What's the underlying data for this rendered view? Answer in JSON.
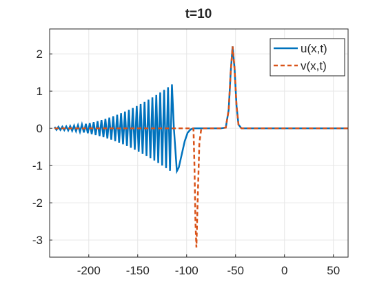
{
  "chart_data": {
    "type": "line",
    "title": "t=10",
    "x": [
      -235,
      -233,
      -231,
      -229,
      -227,
      -225,
      -223,
      -221,
      -219,
      -217,
      -215,
      -213,
      -211,
      -209,
      -207,
      -205,
      -203,
      -201,
      -199,
      -197,
      -195,
      -193,
      -191,
      -189,
      -187,
      -185,
      -183,
      -181,
      -179,
      -177,
      -175,
      -173,
      -171,
      -169,
      -167,
      -165,
      -163,
      -161,
      -159,
      -157,
      -155,
      -153,
      -151,
      -149,
      -147,
      -145,
      -143,
      -141,
      -139,
      -137,
      -135,
      -133,
      -131,
      -129,
      -127,
      -125,
      -123,
      -121,
      -119,
      -117,
      -115,
      -113,
      -110,
      -108,
      -105,
      -102,
      -99,
      -96,
      -93,
      -92,
      -91,
      -90,
      -89,
      -87,
      -85,
      -80,
      -65,
      -60,
      -57,
      -55,
      -53,
      -51,
      -49,
      -47,
      -44,
      0,
      65
    ],
    "series": [
      {
        "name": "u(x,t)",
        "color": "#0072BD",
        "dash": false,
        "values": [
          0.04,
          -0.04,
          0.041,
          -0.043,
          0.045,
          -0.048,
          0.051,
          -0.056,
          0.06,
          -0.066,
          0.072,
          -0.078,
          0.086,
          -0.093,
          0.102,
          -0.111,
          0.121,
          -0.132,
          0.143,
          -0.154,
          0.167,
          -0.18,
          0.193,
          -0.207,
          0.222,
          -0.238,
          0.254,
          -0.271,
          0.288,
          -0.306,
          0.325,
          -0.344,
          0.364,
          -0.385,
          0.406,
          -0.428,
          0.45,
          -0.474,
          0.497,
          -0.522,
          0.547,
          -0.572,
          0.599,
          -0.626,
          0.653,
          -0.681,
          0.71,
          -0.74,
          0.77,
          -0.8,
          0.832,
          -0.864,
          0.896,
          -0.93,
          0.963,
          -0.998,
          1.033,
          -1.069,
          1.105,
          -1.142,
          1.18,
          0,
          -1.15,
          -1.05,
          -0.7,
          -0.35,
          -0.12,
          -0.03,
          0,
          0,
          0,
          0,
          0,
          0,
          0,
          0,
          0,
          0.02,
          0.5,
          1.5,
          2.2,
          1.6,
          0.6,
          0.1,
          0,
          0,
          0
        ]
      },
      {
        "name": "v(x,t)",
        "color": "#D95319",
        "dash": true,
        "values": [
          0,
          0,
          0,
          0,
          0,
          0,
          0,
          0,
          0,
          0,
          0,
          0,
          0,
          0,
          0,
          0,
          0,
          0,
          0,
          0,
          0,
          0,
          0,
          0,
          0,
          0,
          0,
          0,
          0,
          0,
          0,
          0,
          0,
          0,
          0,
          0,
          0,
          0,
          0,
          0,
          0,
          0,
          0,
          0,
          0,
          0,
          0,
          0,
          0,
          0,
          0,
          0,
          0,
          0,
          0,
          0,
          0,
          0,
          0,
          0,
          0,
          0,
          0,
          0,
          0,
          0,
          0,
          0,
          0,
          -1.0,
          -2.5,
          -3.2,
          -2.2,
          -0.4,
          0,
          0,
          0,
          0.02,
          0.5,
          1.5,
          2.2,
          1.6,
          0.6,
          0.1,
          0,
          0,
          0
        ]
      }
    ],
    "xlim": [
      -240,
      65
    ],
    "ylim": [
      -3.46,
      2.67
    ],
    "xticks": [
      -200,
      -150,
      -100,
      -50,
      0,
      50
    ],
    "yticks": [
      -3,
      -2,
      -1,
      0,
      1,
      2
    ],
    "grid": true,
    "legend": "northeast"
  }
}
